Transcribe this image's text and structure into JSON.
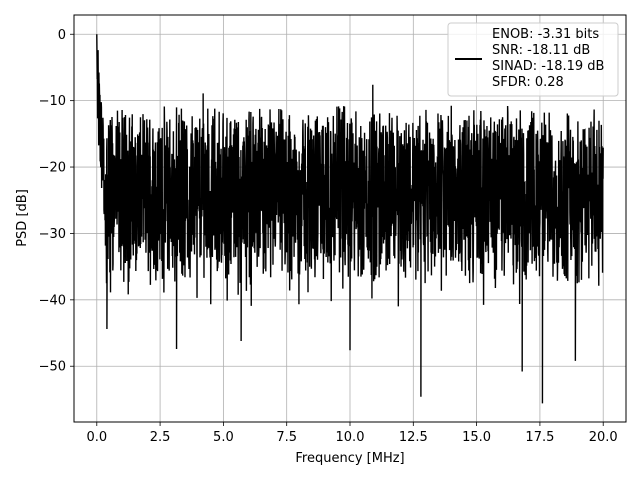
{
  "chart_data": {
    "type": "line",
    "title": "",
    "xlabel": "Frequency [MHz]",
    "ylabel": "PSD [dB]",
    "xlim": [
      -0.9,
      20.9
    ],
    "ylim": [
      -58.4,
      2.9
    ],
    "x_ticks": [
      0.0,
      2.5,
      5.0,
      7.5,
      10.0,
      12.5,
      15.0,
      17.5,
      20.0
    ],
    "x_tick_labels": [
      "0.0",
      "2.5",
      "5.0",
      "7.5",
      "10.0",
      "12.5",
      "15.0",
      "17.5",
      "20.0"
    ],
    "y_ticks": [
      0,
      -10,
      -20,
      -30,
      -40,
      -50
    ],
    "y_tick_labels": [
      "0",
      "−10",
      "−20",
      "−30",
      "−40",
      "−50"
    ],
    "grid": true,
    "legend_position": "top-right",
    "series": [
      {
        "color": "#000000",
        "x_start": 0.0,
        "x_end": 20.0,
        "peak": [
          0.0,
          0.0
        ],
        "band_envelope_db": [
          -35,
          -12
        ],
        "deep_nulls": [
          [
            0.4,
            -44.4
          ],
          [
            3.15,
            -47.4
          ],
          [
            5.7,
            -46.2
          ],
          [
            10.0,
            -47.6
          ],
          [
            12.8,
            -54.6
          ],
          [
            16.8,
            -50.8
          ],
          [
            17.6,
            -55.6
          ],
          [
            18.9,
            -49.2
          ]
        ],
        "spurs": [
          [
            4.2,
            -8.9
          ],
          [
            10.9,
            -7.6
          ]
        ]
      }
    ]
  },
  "legend": {
    "entries": [
      "ENOB: -3.31 bits",
      "SNR: -18.11 dB",
      "SINAD: -18.19 dB",
      "SFDR: 0.28"
    ]
  }
}
